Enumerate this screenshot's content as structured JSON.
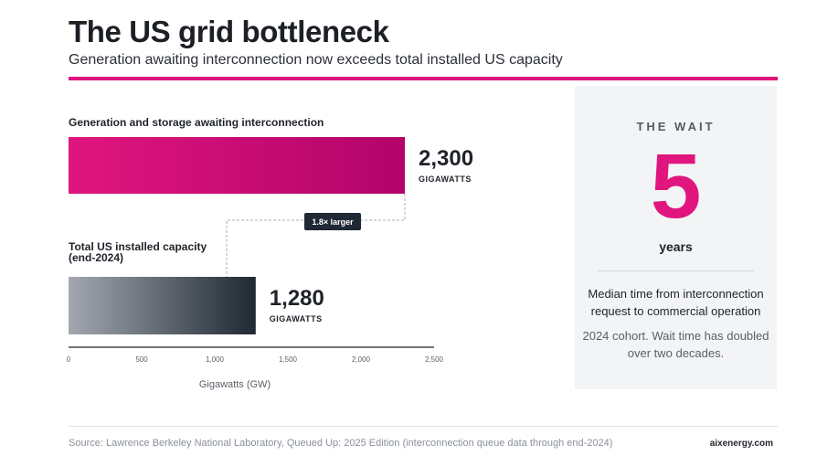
{
  "header": {
    "title": "The US grid bottleneck",
    "subtitle": "Generation awaiting interconnection now exceeds total installed US capacity"
  },
  "colors": {
    "accent": "#e0157e",
    "accent_dark": "#b2046a",
    "gray_light": "#a3a8b0",
    "gray_dark": "#1f2833"
  },
  "chart_data": {
    "type": "bar",
    "orientation": "horizontal",
    "categories": [
      "Generation and storage awaiting interconnection",
      "Total US installed capacity (end-2024)"
    ],
    "category_lines": [
      [
        "Generation and storage awaiting interconnection"
      ],
      [
        "Total US installed capacity",
        "(end-2024)"
      ]
    ],
    "values": [
      2300,
      1280
    ],
    "value_labels": [
      "2,300",
      "1,280"
    ],
    "unit_label": "GIGAWATTS",
    "xlabel": "Gigawatts (GW)",
    "ylabel": "",
    "xlim": [
      0,
      2500
    ],
    "x_ticks": [
      0,
      500,
      1000,
      1500,
      2000,
      2500
    ],
    "x_tick_labels": [
      "0",
      "500",
      "1,000",
      "1,500",
      "2,000",
      "2,500"
    ],
    "annotation": "1.8× larger",
    "grid": false
  },
  "panel": {
    "heading": "THE WAIT",
    "value": "5",
    "unit": "years",
    "description": "Median time from interconnection request to commercial operation",
    "note": "2024 cohort. Wait time has doubled over two decades."
  },
  "footer": {
    "source": "Source: Lawrence Berkeley National Laboratory, Queued Up: 2025 Edition (interconnection queue data through end-2024)",
    "brand": "aixenergy.com"
  }
}
